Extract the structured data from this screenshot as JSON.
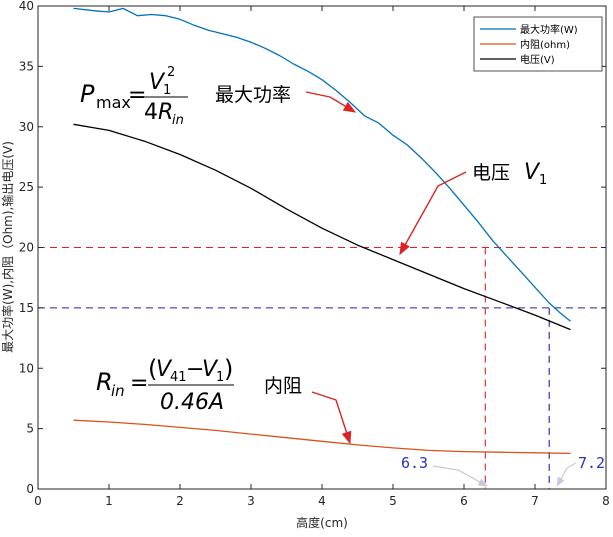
{
  "chart_data": {
    "type": "line",
    "xlabel": "高度(cm)",
    "ylabel": "最大功率(W),内阻（Ohm),输出电压(V)",
    "xlim": [
      0,
      8
    ],
    "ylim": [
      0,
      40
    ],
    "x_ticks": [
      "0",
      "1",
      "2",
      "3",
      "4",
      "5",
      "6",
      "7",
      "8"
    ],
    "y_ticks": [
      "0",
      "5",
      "10",
      "15",
      "20",
      "25",
      "30",
      "35",
      "40"
    ],
    "grid": false,
    "legend_position": "top-right",
    "legend": [
      "最大功率(W)",
      "内阻(ohm)",
      "电压(V)"
    ],
    "series": [
      {
        "name": "最大功率(W)",
        "color": "#0072BD",
        "points": [
          [
            0.5,
            39.8
          ],
          [
            0.8,
            39.6
          ],
          [
            1.0,
            39.5
          ],
          [
            1.2,
            39.8
          ],
          [
            1.4,
            39.2
          ],
          [
            1.6,
            39.3
          ],
          [
            1.8,
            39.2
          ],
          [
            2.0,
            38.9
          ],
          [
            2.2,
            38.4
          ],
          [
            2.4,
            38.0
          ],
          [
            2.6,
            37.7
          ],
          [
            2.8,
            37.4
          ],
          [
            3.0,
            37.0
          ],
          [
            3.2,
            36.5
          ],
          [
            3.4,
            35.9
          ],
          [
            3.6,
            35.2
          ],
          [
            3.8,
            34.6
          ],
          [
            4.0,
            33.9
          ],
          [
            4.2,
            33.0
          ],
          [
            4.4,
            32.0
          ],
          [
            4.6,
            30.9
          ],
          [
            4.8,
            30.3
          ],
          [
            5.0,
            29.3
          ],
          [
            5.2,
            28.5
          ],
          [
            5.4,
            27.4
          ],
          [
            5.6,
            26.2
          ],
          [
            5.8,
            24.9
          ],
          [
            6.0,
            23.5
          ],
          [
            6.2,
            22.1
          ],
          [
            6.4,
            20.6
          ],
          [
            6.6,
            19.3
          ],
          [
            6.8,
            18.0
          ],
          [
            7.0,
            16.7
          ],
          [
            7.2,
            15.4
          ],
          [
            7.35,
            14.6
          ],
          [
            7.5,
            13.9
          ]
        ]
      },
      {
        "name": "内阻(ohm)",
        "color": "#D95319",
        "points": [
          [
            0.5,
            5.7
          ],
          [
            1.0,
            5.55
          ],
          [
            1.5,
            5.35
          ],
          [
            2.0,
            5.1
          ],
          [
            2.5,
            4.85
          ],
          [
            3.0,
            4.55
          ],
          [
            3.5,
            4.25
          ],
          [
            4.0,
            3.95
          ],
          [
            4.5,
            3.65
          ],
          [
            5.0,
            3.4
          ],
          [
            5.5,
            3.2
          ],
          [
            6.0,
            3.1
          ],
          [
            6.5,
            3.05
          ],
          [
            7.0,
            3.0
          ],
          [
            7.5,
            2.95
          ]
        ]
      },
      {
        "name": "电压(V)",
        "color": "#000000",
        "points": [
          [
            0.5,
            30.2
          ],
          [
            1.0,
            29.7
          ],
          [
            1.5,
            28.8
          ],
          [
            2.0,
            27.7
          ],
          [
            2.5,
            26.4
          ],
          [
            3.0,
            24.9
          ],
          [
            3.5,
            23.2
          ],
          [
            4.0,
            21.6
          ],
          [
            4.5,
            20.2
          ],
          [
            5.0,
            19.0
          ],
          [
            5.5,
            17.8
          ],
          [
            6.0,
            16.6
          ],
          [
            6.5,
            15.5
          ],
          [
            7.0,
            14.4
          ],
          [
            7.5,
            13.2
          ]
        ]
      }
    ],
    "reference_lines": [
      {
        "type": "horizontal",
        "y": 20,
        "color": "#DD2222"
      },
      {
        "type": "horizontal",
        "y": 15,
        "color": "#2222AA"
      },
      {
        "type": "vertical",
        "x": 6.3,
        "y_top": 20,
        "color": "#DD2222"
      },
      {
        "type": "vertical",
        "x": 7.2,
        "y_top": 15,
        "color": "#2222AA"
      }
    ],
    "annotations": {
      "power_label": "最大功率",
      "voltage_label": "电压",
      "resistance_label": "内阻",
      "callout_63": "6.3",
      "callout_72": "7.2"
    },
    "formulas": {
      "pmax": {
        "lhs": "P",
        "lhs_sub": "max",
        "num": "V",
        "num_sub": "1",
        "num_sup": "2",
        "den_coef": "4",
        "den": "R",
        "den_sub": "in"
      },
      "voltage_symbol": {
        "sym": "V",
        "sub": "1"
      },
      "rin": {
        "lhs": "R",
        "lhs_sub": "in",
        "num_open": "(",
        "v41": "V",
        "v41_sub": "41",
        "minus": "−",
        "v1": "V",
        "v1_sub": "1",
        "num_close": ")",
        "den": "0.46A"
      }
    }
  }
}
